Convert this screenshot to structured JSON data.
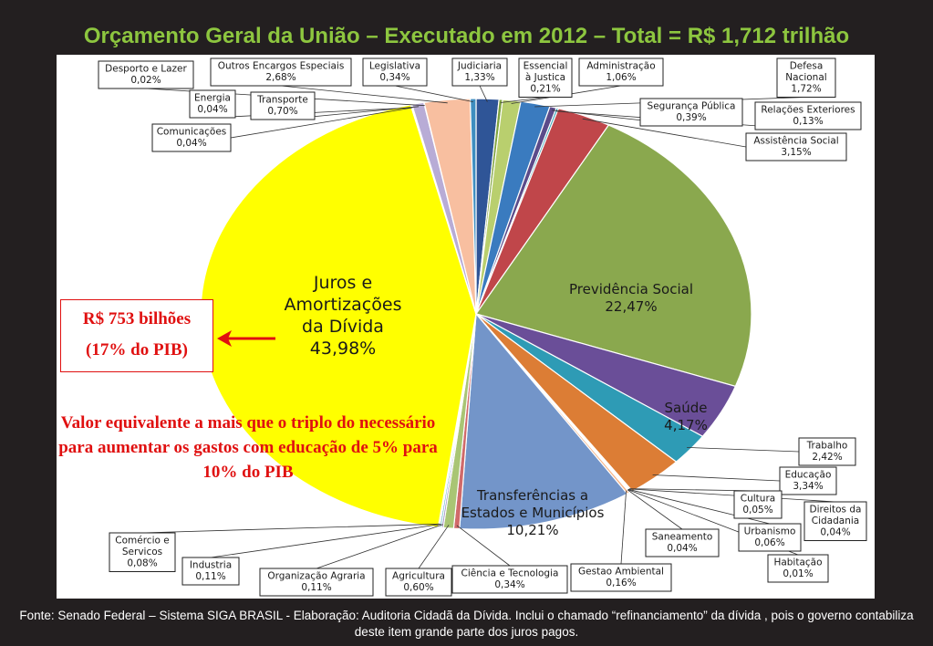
{
  "title": "Orçamento Geral da União – Executado em 2012 – Total = R$ 1,712  trilhão",
  "footer": "Fonte: Senado Federal – Sistema SIGA BRASIL - Elaboração: Auditoria Cidadã da Dívida. Inclui o chamado “refinanciamento” da dívida , pois o governo contabiliza deste item grande parte dos juros pagos.",
  "callout": {
    "line1": "R$ 753 bilhões",
    "line2": "(17% do PIB)"
  },
  "note": "Valor equivalente a mais que o triplo do necessário para aumentar os gastos com educação de 5% para 10% do PIB",
  "colors": {
    "background": "#231f20",
    "title": "#8dc63f",
    "callout": "#e01010"
  },
  "chart_data": {
    "type": "pie",
    "unit": "%",
    "slices": [
      {
        "label": "Judiciaria",
        "value": 1.33,
        "color": "#2f5597"
      },
      {
        "label": "Essencial à Justica",
        "value": 0.21,
        "color": "#7fa33f"
      },
      {
        "label": "Administração",
        "value": 1.06,
        "color": "#b9cf6e"
      },
      {
        "label": "Defesa Nacional",
        "value": 1.72,
        "color": "#3a7bbf"
      },
      {
        "label": "Segurança Pública",
        "value": 0.39,
        "color": "#5b4b8a"
      },
      {
        "label": "Relações Exteriores",
        "value": 0.13,
        "color": "#2fa0b5"
      },
      {
        "label": "Assistência Social",
        "value": 3.15,
        "color": "#c0464a"
      },
      {
        "label": "Previdência Social",
        "value": 22.47,
        "color": "#8aa84e"
      },
      {
        "label": "Saúde",
        "value": 4.17,
        "color": "#6a4e98"
      },
      {
        "label": "Trabalho",
        "value": 2.42,
        "color": "#2e9bb5"
      },
      {
        "label": "Educação",
        "value": 3.34,
        "color": "#dc7d35"
      },
      {
        "label": "Cultura",
        "value": 0.05,
        "color": "#9db3d8"
      },
      {
        "label": "Direitos da Cidadania",
        "value": 0.04,
        "color": "#d89a9a"
      },
      {
        "label": "Urbanismo",
        "value": 0.06,
        "color": "#c4d79b"
      },
      {
        "label": "Habitação",
        "value": 0.01,
        "color": "#b3a2c7"
      },
      {
        "label": "Saneamento",
        "value": 0.04,
        "color": "#93cddd"
      },
      {
        "label": "Gestao Ambiental",
        "value": 0.16,
        "color": "#f5b183"
      },
      {
        "label": "Transferências a Estados e Municípios",
        "value": 10.21,
        "color": "#7395c9"
      },
      {
        "label": "Ciência e Tecnologia",
        "value": 0.34,
        "color": "#d06a6a"
      },
      {
        "label": "Agricultura",
        "value": 0.6,
        "color": "#a9c574"
      },
      {
        "label": "Organização Agraria",
        "value": 0.11,
        "color": "#8e7bb5"
      },
      {
        "label": "Industria",
        "value": 0.11,
        "color": "#63b8cc"
      },
      {
        "label": "Comércio e Servicos",
        "value": 0.08,
        "color": "#f2a05b"
      },
      {
        "label": "Juros e Amortizações da Dívida",
        "value": 43.98,
        "color": "#ffff00"
      },
      {
        "label": "Comunicações",
        "value": 0.04,
        "color": "#6f7fa5"
      },
      {
        "label": "Energia",
        "value": 0.04,
        "color": "#c45f5f"
      },
      {
        "label": "Transporte",
        "value": 0.7,
        "color": "#b8acd6"
      },
      {
        "label": "Desporto e Lazer",
        "value": 0.02,
        "color": "#7a9a4a"
      },
      {
        "label": "Outros Encargos Especiais",
        "value": 2.68,
        "color": "#f8bfa0"
      },
      {
        "label": "Legislativa",
        "value": 0.34,
        "color": "#3e8ec0"
      }
    ],
    "inside_labels": [
      {
        "name": "Juros e Amortizações da Dívida",
        "lines": [
          "Juros e",
          "Amortizações",
          "da Dívida"
        ],
        "value": "43,98%"
      },
      {
        "name": "Previdência Social",
        "lines": [
          "Previdência Social"
        ],
        "value": "22,47%"
      },
      {
        "name": "Saúde",
        "lines": [
          "Saúde"
        ],
        "value": "4,17%"
      },
      {
        "name": "Transferências a Estados e Municípios",
        "lines": [
          "Transferências a",
          "Estados e Municípios"
        ],
        "value": "10,21%"
      }
    ],
    "boxed_labels": [
      {
        "name": "Desporto e Lazer",
        "lines": [
          "Desporto e Lazer",
          "0,02%"
        ]
      },
      {
        "name": "Outros Encargos Especiais",
        "lines": [
          "Outros Encargos Especiais",
          "2,68%"
        ]
      },
      {
        "name": "Legislativa",
        "lines": [
          "Legislativa",
          "0,34%"
        ]
      },
      {
        "name": "Judiciaria",
        "lines": [
          "Judiciaria",
          "1,33%"
        ]
      },
      {
        "name": "Essencial à Justica",
        "lines": [
          "Essencial",
          "à Justica",
          "0,21%"
        ]
      },
      {
        "name": "Administração",
        "lines": [
          "Administração",
          "1,06%"
        ]
      },
      {
        "name": "Defesa Nacional",
        "lines": [
          "Defesa",
          "Nacional",
          "1,72%"
        ]
      },
      {
        "name": "Energia",
        "lines": [
          "Energia",
          "0,04%"
        ]
      },
      {
        "name": "Transporte",
        "lines": [
          "Transporte",
          "0,70%"
        ]
      },
      {
        "name": "Segurança Pública",
        "lines": [
          "Segurança Pública",
          "0,39%"
        ]
      },
      {
        "name": "Relações Exteriores",
        "lines": [
          "Relações Exteriores",
          "0,13%"
        ]
      },
      {
        "name": "Comunicações",
        "lines": [
          "Comunicações",
          "0,04%"
        ]
      },
      {
        "name": "Assistência Social",
        "lines": [
          "Assistência Social",
          "3,15%"
        ]
      },
      {
        "name": "Trabalho",
        "lines": [
          "Trabalho",
          "2,42%"
        ]
      },
      {
        "name": "Educação",
        "lines": [
          "Educação",
          "3,34%"
        ]
      },
      {
        "name": "Cultura",
        "lines": [
          "Cultura",
          "0,05%"
        ]
      },
      {
        "name": "Direitos da Cidadania",
        "lines": [
          "Direitos da",
          "Cidadania",
          "0,04%"
        ]
      },
      {
        "name": "Urbanismo",
        "lines": [
          "Urbanismo",
          "0,06%"
        ]
      },
      {
        "name": "Saneamento",
        "lines": [
          "Saneamento",
          "0,04%"
        ]
      },
      {
        "name": "Habitação",
        "lines": [
          "Habitação",
          "0,01%"
        ]
      },
      {
        "name": "Comércio e Servicos",
        "lines": [
          "Comércio e",
          "Servicos",
          "0,08%"
        ]
      },
      {
        "name": "Industria",
        "lines": [
          "Industria",
          "0,11%"
        ]
      },
      {
        "name": "Organização Agraria",
        "lines": [
          "Organização Agraria",
          "0,11%"
        ]
      },
      {
        "name": "Agricultura",
        "lines": [
          "Agricultura",
          "0,60%"
        ]
      },
      {
        "name": "Ciência e Tecnologia",
        "lines": [
          "Ciência e Tecnologia",
          "0,34%"
        ]
      },
      {
        "name": "Gestao Ambiental",
        "lines": [
          "Gestao Ambiental",
          "0,16%"
        ]
      }
    ]
  }
}
